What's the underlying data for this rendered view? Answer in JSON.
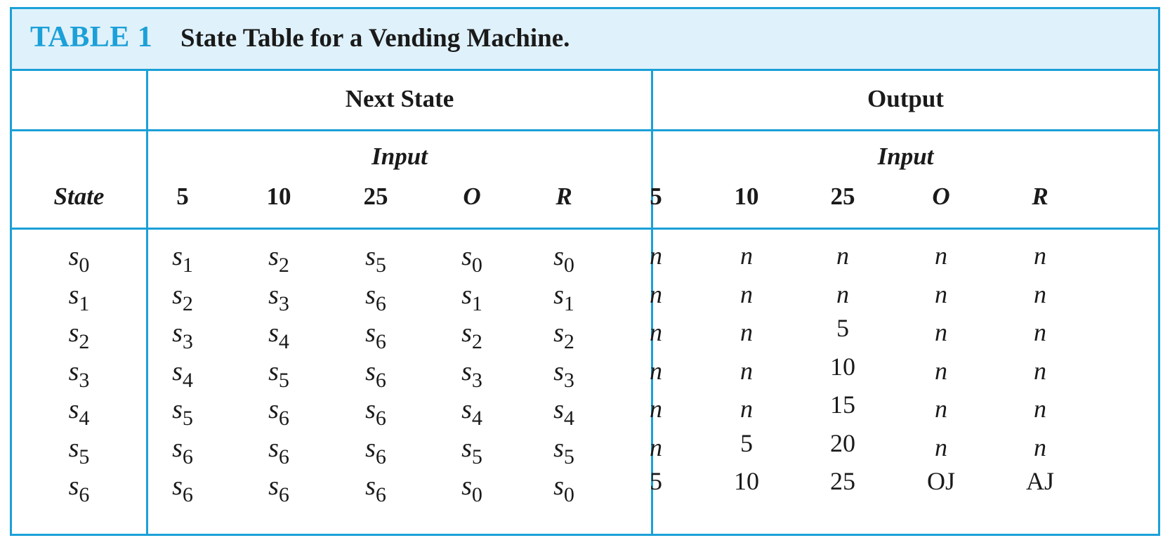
{
  "table": {
    "label": "TABLE 1",
    "title": "State Table for a Vending Machine.",
    "groups": {
      "next_state": "Next State",
      "output": "Output"
    },
    "input_label": "Input",
    "state_header": "State",
    "input_columns": [
      "5",
      "10",
      "25",
      "O",
      "R"
    ],
    "rows": [
      {
        "state": "0",
        "next": [
          "1",
          "2",
          "5",
          "0",
          "0"
        ],
        "output": [
          "n",
          "n",
          "n",
          "n",
          "n"
        ]
      },
      {
        "state": "1",
        "next": [
          "2",
          "3",
          "6",
          "1",
          "1"
        ],
        "output": [
          "n",
          "n",
          "n",
          "n",
          "n"
        ]
      },
      {
        "state": "2",
        "next": [
          "3",
          "4",
          "6",
          "2",
          "2"
        ],
        "output": [
          "n",
          "n",
          "5",
          "n",
          "n"
        ]
      },
      {
        "state": "3",
        "next": [
          "4",
          "5",
          "6",
          "3",
          "3"
        ],
        "output": [
          "n",
          "n",
          "10",
          "n",
          "n"
        ]
      },
      {
        "state": "4",
        "next": [
          "5",
          "6",
          "6",
          "4",
          "4"
        ],
        "output": [
          "n",
          "n",
          "15",
          "n",
          "n"
        ]
      },
      {
        "state": "5",
        "next": [
          "6",
          "6",
          "6",
          "5",
          "5"
        ],
        "output": [
          "n",
          "5",
          "20",
          "n",
          "n"
        ]
      },
      {
        "state": "6",
        "next": [
          "6",
          "6",
          "6",
          "0",
          "0"
        ],
        "output": [
          "5",
          "10",
          "25",
          "OJ",
          "AJ"
        ]
      }
    ],
    "symbol_prefix": "s",
    "colors": {
      "accent": "#1ba0d8",
      "title_band": "#dff1fb",
      "text": "#1a1a1a"
    }
  }
}
